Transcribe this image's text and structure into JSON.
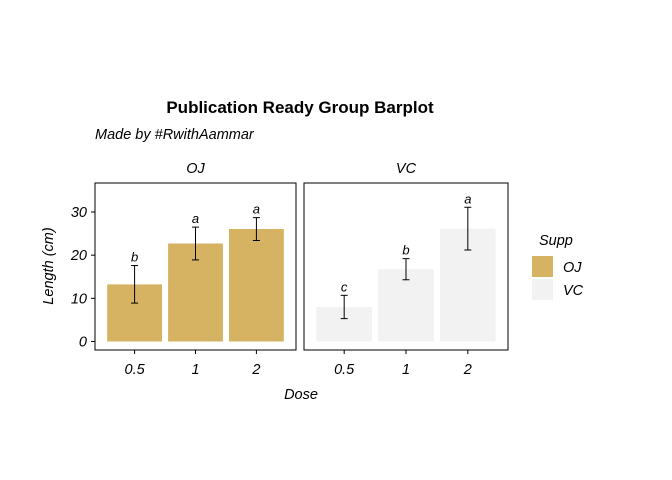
{
  "chart_data": {
    "type": "bar",
    "title": "Publication Ready Group Barplot",
    "subtitle": "Made by #RwithAammar",
    "xlabel": "Dose",
    "ylabel": "Length (cm)",
    "ylim": [
      0,
      35
    ],
    "yticks": [
      0,
      10,
      20,
      30
    ],
    "categories": [
      "0.5",
      "1",
      "2"
    ],
    "grid": false,
    "legend": {
      "title": "Supp",
      "placement": "right",
      "entries": [
        "OJ",
        "VC"
      ]
    },
    "panels": [
      {
        "name": "OJ",
        "color": "#d6b263",
        "values": [
          13.23,
          22.7,
          26.06
        ],
        "error_low": [
          8.9,
          18.9,
          23.4
        ],
        "error_high": [
          17.6,
          26.5,
          28.7
        ],
        "labels": [
          "b",
          "a",
          "a"
        ]
      },
      {
        "name": "VC",
        "color": "#f2f2f2",
        "values": [
          7.98,
          16.77,
          26.14
        ],
        "error_low": [
          5.3,
          14.3,
          21.2
        ],
        "error_high": [
          10.7,
          19.2,
          31.1
        ],
        "labels": [
          "c",
          "b",
          "a"
        ]
      }
    ]
  }
}
